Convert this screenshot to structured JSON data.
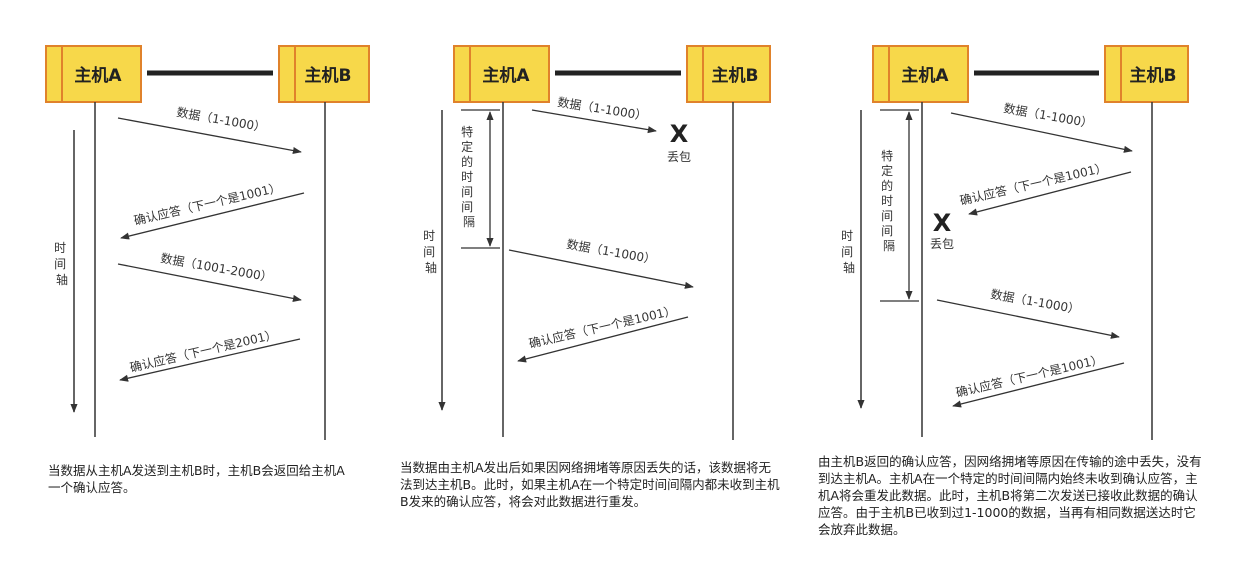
{
  "colors": {
    "host_fill": "#f7d84a",
    "host_border": "#e0822b",
    "line": "#333333"
  },
  "diagrams": [
    {
      "host_a": "主机A",
      "host_b": "主机B",
      "time_axis": "时间轴",
      "messages": [
        "数据（1-1000）",
        "确认应答（下一个是1001）",
        "数据（1001-2000）",
        "确认应答（下一个是2001）"
      ],
      "caption": "当数据从主机A发送到主机B时，主机B会返回给主机A一个确认应答。"
    },
    {
      "host_a": "主机A",
      "host_b": "主机B",
      "time_axis": "时间轴",
      "interval": "特定的时间间隔",
      "lost_mark": "X",
      "lost_label": "丢包",
      "messages": [
        "数据（1-1000）",
        "数据（1-1000）",
        "确认应答（下一个是1001）"
      ],
      "caption": "当数据由主机A发出后如果因网络拥堵等原因丢失的话，该数据将无法到达主机B。此时，如果主机A在一个特定时间间隔内都未收到主机B发来的确认应答，将会对此数据进行重发。"
    },
    {
      "host_a": "主机A",
      "host_b": "主机B",
      "time_axis": "时间轴",
      "interval": "特定的时间间隔",
      "lost_mark": "X",
      "lost_label": "丢包",
      "messages": [
        "数据（1-1000）",
        "确认应答（下一个是1001）",
        "数据（1-1000）",
        "确认应答（下一个是1001）"
      ],
      "caption": "由主机B返回的确认应答，因网络拥堵等原因在传输的途中丢失，没有到达主机A。主机A在一个特定的时间间隔内始终未收到确认应答，主机A将会重发此数据。此时，主机B将第二次发送已接收此数据的确认应答。由于主机B已收到过1-1000的数据，当再有相同数据送达时它会放弃此数据。"
    }
  ]
}
